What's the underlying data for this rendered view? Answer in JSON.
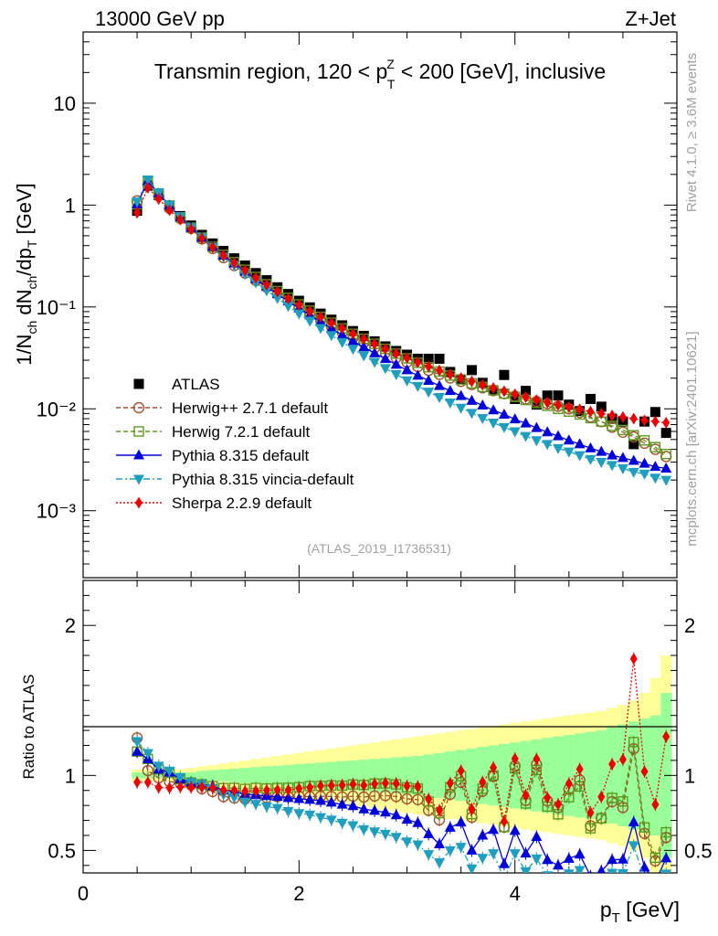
{
  "header": {
    "left": "13000 GeV pp",
    "right": "Z+Jet",
    "title_prefix": "Transmin region, 120 < p",
    "title_sup": "Z",
    "title_sub": "T",
    "title_suffix": " < 200 [GeV], inclusive"
  },
  "side_labels": {
    "rivet": "Rivet 4.1.0, ≥ 3.6M events",
    "mcplots": "mcplots.cern.ch [arXiv:2401.10621]"
  },
  "watermark": "(ATLAS_2019_I1736531)",
  "axes": {
    "ylabel_main": "1/N_ch dN_ch/dp_T [GeV]",
    "ylabel_ratio": "Ratio to ATLAS",
    "xlabel": "p_T [GeV]",
    "main_yticks": [
      {
        "value": 10,
        "label": "10"
      },
      {
        "value": 1,
        "label": "1"
      },
      {
        "value": 0.1,
        "label": "10⁻¹"
      },
      {
        "value": 0.01,
        "label": "10⁻²"
      },
      {
        "value": 0.001,
        "label": "10⁻³"
      }
    ],
    "ratio_yticks": [
      {
        "value": 2,
        "label": "2"
      },
      {
        "value": 1,
        "label": "1"
      },
      {
        "value": 0.5,
        "label": "0.5"
      }
    ],
    "xticks": [
      {
        "value": 0,
        "label": "0"
      },
      {
        "value": 2,
        "label": "2"
      },
      {
        "value": 4,
        "label": "4"
      }
    ]
  },
  "chart_data": {
    "type": "scatter",
    "title": "Transmin region, 120 < pT^Z < 200 [GeV], inclusive",
    "xlabel": "pT [GeV]",
    "ylabel": "1/Nch dNch/dpT [GeV]",
    "xscale": "linear",
    "yscale": "log",
    "xlim": [
      0,
      5.5
    ],
    "ylim": [
      0.00022,
      50
    ],
    "ratio_ylabel": "Ratio to ATLAS",
    "ratio_ylim": [
      0.35,
      2.3
    ],
    "x": [
      0.5,
      0.6,
      0.7,
      0.8,
      0.9,
      1.0,
      1.1,
      1.2,
      1.3,
      1.4,
      1.5,
      1.6,
      1.7,
      1.8,
      1.9,
      2.0,
      2.1,
      2.2,
      2.3,
      2.4,
      2.5,
      2.6,
      2.7,
      2.8,
      2.9,
      3.0,
      3.1,
      3.2,
      3.3,
      3.4,
      3.5,
      3.6,
      3.7,
      3.8,
      3.9,
      4.0,
      4.1,
      4.2,
      4.3,
      4.4,
      4.5,
      4.6,
      4.7,
      4.8,
      4.9,
      5.0,
      5.1,
      5.2,
      5.3,
      5.4
    ],
    "series": [
      {
        "name": "ATLAS",
        "marker": "square",
        "color": "#000000",
        "values": [
          0.88,
          1.55,
          1.25,
          0.97,
          0.78,
          0.63,
          0.51,
          0.42,
          0.355,
          0.3,
          0.255,
          0.215,
          0.183,
          0.156,
          0.134,
          0.115,
          0.099,
          0.086,
          0.075,
          0.066,
          0.058,
          0.052,
          0.046,
          0.041,
          0.037,
          0.034,
          0.031,
          0.031,
          0.031,
          0.023,
          0.0195,
          0.024,
          0.018,
          0.0152,
          0.0215,
          0.0125,
          0.015,
          0.011,
          0.0135,
          0.0135,
          0.011,
          0.0095,
          0.0125,
          0.0105,
          0.008,
          0.0075,
          0.0045,
          0.0075,
          0.0093,
          0.0058
        ]
      },
      {
        "name": "Herwig++ 2.7.1 default",
        "marker": "open-circle",
        "color": "#a0522d",
        "values": [
          1.1,
          1.6,
          1.23,
          0.93,
          0.74,
          0.59,
          0.465,
          0.375,
          0.305,
          0.255,
          0.215,
          0.182,
          0.156,
          0.134,
          0.115,
          0.099,
          0.085,
          0.074,
          0.0645,
          0.0565,
          0.05,
          0.0445,
          0.0397,
          0.0355,
          0.0318,
          0.0287,
          0.026,
          0.0238,
          0.0218,
          0.0201,
          0.0186,
          0.0173,
          0.0161,
          0.0151,
          0.0141,
          0.0133,
          0.0125,
          0.0118,
          0.0112,
          0.0106,
          0.01,
          0.0092,
          0.0083,
          0.0075,
          0.0066,
          0.0059,
          0.0053,
          0.0046,
          0.004,
          0.0034
        ]
      },
      {
        "name": "Herwig 7.2.1 default",
        "marker": "open-square",
        "color": "#5a9a1c",
        "values": [
          1.02,
          1.72,
          1.3,
          0.99,
          0.76,
          0.6,
          0.48,
          0.39,
          0.325,
          0.275,
          0.232,
          0.197,
          0.167,
          0.143,
          0.123,
          0.106,
          0.092,
          0.08,
          0.07,
          0.0615,
          0.0545,
          0.0487,
          0.0435,
          0.0388,
          0.0348,
          0.0313,
          0.0283,
          0.0256,
          0.0232,
          0.0212,
          0.0194,
          0.0178,
          0.0164,
          0.0152,
          0.0141,
          0.0131,
          0.0122,
          0.0114,
          0.0107,
          0.01,
          0.0094,
          0.0088,
          0.0081,
          0.0075,
          0.0068,
          0.0062,
          0.0055,
          0.0049,
          0.0042,
          0.0036
        ]
      },
      {
        "name": "Pythia 8.315 default",
        "marker": "filled-triangle-up",
        "color": "#0000dd",
        "values": [
          1.02,
          1.72,
          1.3,
          0.99,
          0.76,
          0.6,
          0.48,
          0.39,
          0.32,
          0.268,
          0.223,
          0.187,
          0.158,
          0.134,
          0.114,
          0.097,
          0.083,
          0.0715,
          0.0615,
          0.0532,
          0.0462,
          0.0403,
          0.0352,
          0.0309,
          0.0272,
          0.024,
          0.0212,
          0.0189,
          0.0168,
          0.015,
          0.0134,
          0.012,
          0.0108,
          0.0097,
          0.0088,
          0.0079,
          0.0072,
          0.0065,
          0.0059,
          0.0054,
          0.0049,
          0.0045,
          0.0041,
          0.0038,
          0.0035,
          0.0033,
          0.0031,
          0.0029,
          0.0027,
          0.0026
        ]
      },
      {
        "name": "Pythia 8.315 vincia-default",
        "marker": "filled-triangle-down",
        "color": "#1e9fbf",
        "values": [
          1.08,
          1.78,
          1.33,
          1.0,
          0.77,
          0.6,
          0.48,
          0.385,
          0.31,
          0.256,
          0.21,
          0.174,
          0.145,
          0.122,
          0.102,
          0.086,
          0.073,
          0.062,
          0.0528,
          0.0451,
          0.0387,
          0.0333,
          0.0288,
          0.025,
          0.0218,
          0.019,
          0.0167,
          0.0147,
          0.013,
          0.0115,
          0.0102,
          0.0091,
          0.0081,
          0.0073,
          0.0066,
          0.006,
          0.0054,
          0.0049,
          0.0045,
          0.0041,
          0.0038,
          0.0035,
          0.0032,
          0.003,
          0.0028,
          0.0026,
          0.0024,
          0.0023,
          0.0021,
          0.002
        ]
      },
      {
        "name": "Sherpa 2.2.9 default",
        "marker": "filled-diamond",
        "color": "#ee0000",
        "values": [
          0.84,
          1.48,
          1.15,
          0.89,
          0.72,
          0.58,
          0.47,
          0.385,
          0.32,
          0.27,
          0.228,
          0.193,
          0.165,
          0.141,
          0.121,
          0.105,
          0.091,
          0.08,
          0.07,
          0.0617,
          0.0546,
          0.0486,
          0.0434,
          0.0389,
          0.035,
          0.0316,
          0.0287,
          0.0261,
          0.0238,
          0.0218,
          0.0201,
          0.0186,
          0.0172,
          0.016,
          0.0149,
          0.0139,
          0.013,
          0.0122,
          0.0115,
          0.0109,
          0.0104,
          0.0099,
          0.0094,
          0.009,
          0.0086,
          0.0083,
          0.008,
          0.0077,
          0.0075,
          0.0073
        ]
      }
    ],
    "ratio_bands": {
      "inner_color": "#99ff99",
      "outer_color": "#ffff99",
      "inner_halfwidth": [
        0.02,
        0.02,
        0.02,
        0.02,
        0.02,
        0.02,
        0.03,
        0.035,
        0.04,
        0.045,
        0.05,
        0.055,
        0.06,
        0.065,
        0.07,
        0.075,
        0.08,
        0.085,
        0.09,
        0.095,
        0.1,
        0.105,
        0.11,
        0.115,
        0.12,
        0.125,
        0.13,
        0.14,
        0.15,
        0.16,
        0.17,
        0.18,
        0.19,
        0.2,
        0.21,
        0.22,
        0.23,
        0.24,
        0.25,
        0.26,
        0.27,
        0.28,
        0.29,
        0.3,
        0.32,
        0.34,
        0.36,
        0.38,
        0.4,
        0.55
      ],
      "outer_halfwidth": [
        0.04,
        0.04,
        0.04,
        0.04,
        0.04,
        0.05,
        0.06,
        0.07,
        0.08,
        0.09,
        0.1,
        0.11,
        0.12,
        0.13,
        0.14,
        0.15,
        0.16,
        0.17,
        0.18,
        0.19,
        0.2,
        0.21,
        0.22,
        0.23,
        0.24,
        0.25,
        0.26,
        0.27,
        0.28,
        0.29,
        0.3,
        0.31,
        0.32,
        0.33,
        0.34,
        0.35,
        0.36,
        0.37,
        0.38,
        0.39,
        0.4,
        0.41,
        0.42,
        0.43,
        0.45,
        0.47,
        0.5,
        0.55,
        0.65,
        0.8
      ]
    },
    "legend_position": "left-middle"
  }
}
